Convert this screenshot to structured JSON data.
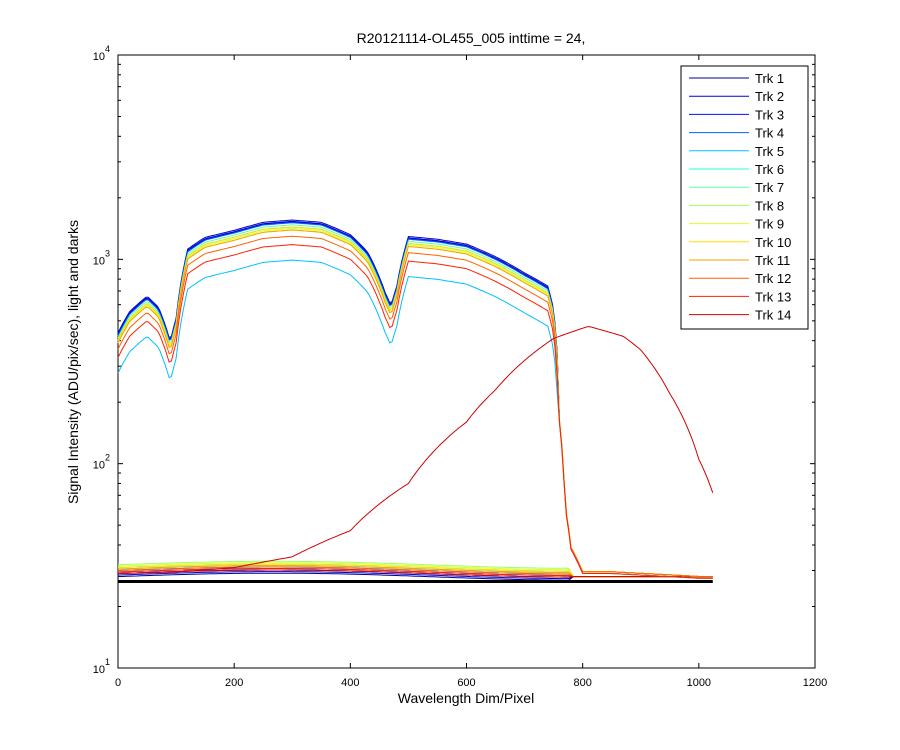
{
  "chart_data": {
    "type": "line",
    "title": "R20121114-OL455_005 inttime = 24,",
    "xlabel": "Wavelength Dim/Pixel",
    "ylabel": "Signal Intensity (ADU/pix/sec), light and darks",
    "xlim": [
      0,
      1200
    ],
    "ylim": [
      10,
      10000
    ],
    "y_scale": "log",
    "grid": false,
    "legend_position": "top-right",
    "x_ticks": [
      "0",
      "200",
      "400",
      "600",
      "800",
      "1000",
      "1200"
    ],
    "y_ticks": [
      {
        "base": "10",
        "exp": "1",
        "value": 10
      },
      {
        "base": "10",
        "exp": "2",
        "value": 100
      },
      {
        "base": "10",
        "exp": "3",
        "value": 1000
      },
      {
        "base": "10",
        "exp": "4",
        "value": 10000
      }
    ],
    "series": [
      {
        "name": "Trk 1",
        "color": "#00008f",
        "family": "light",
        "scale": 1.3,
        "dark": 28
      },
      {
        "name": "Trk 2",
        "color": "#0000cf",
        "family": "light",
        "scale": 1.32,
        "dark": 28.5
      },
      {
        "name": "Trk 3",
        "color": "#0010ff",
        "family": "light",
        "scale": 1.29,
        "dark": 29
      },
      {
        "name": "Trk 4",
        "color": "#0060ff",
        "family": "light",
        "scale": 1.28,
        "dark": 29.5
      },
      {
        "name": "Trk 5",
        "color": "#00c0ff",
        "family": "light",
        "scale": 0.84,
        "dark": 30
      },
      {
        "name": "Trk 6",
        "color": "#20ffdf",
        "family": "light",
        "scale": 1.22,
        "dark": 30.5
      },
      {
        "name": "Trk 7",
        "color": "#60ff9f",
        "family": "light",
        "scale": 1.25,
        "dark": 31
      },
      {
        "name": "Trk 8",
        "color": "#9fff60",
        "family": "light",
        "scale": 1.18,
        "dark": 32
      },
      {
        "name": "Trk 9",
        "color": "#dfff20",
        "family": "light",
        "scale": 1.2,
        "dark": 31.5
      },
      {
        "name": "Trk 10",
        "color": "#ffdf00",
        "family": "light",
        "scale": 1.22,
        "dark": 31
      },
      {
        "name": "Trk 11",
        "color": "#ff9f00",
        "family": "light",
        "scale": 1.18,
        "dark": 30.5
      },
      {
        "name": "Trk 12",
        "color": "#ff6000",
        "family": "light",
        "scale": 1.1,
        "dark": 30
      },
      {
        "name": "Trk 13",
        "color": "#ff2000",
        "family": "light",
        "scale": 1.0,
        "dark": 29.5
      },
      {
        "name": "Trk 14",
        "color": "#cf0000",
        "family": "gaussian",
        "peak_x": 810,
        "peak_y": 470,
        "dark": 29
      }
    ],
    "base_light_profile": {
      "x": [
        0,
        20,
        50,
        70,
        90,
        100,
        120,
        150,
        200,
        250,
        300,
        350,
        400,
        430,
        460,
        470,
        480,
        500,
        550,
        600,
        650,
        700,
        740,
        750,
        760,
        770,
        780,
        800,
        850,
        900,
        950,
        1000,
        1024
      ],
      "y": [
        330,
        420,
        500,
        440,
        300,
        390,
        850,
        970,
        1050,
        1150,
        1180,
        1150,
        1000,
        820,
        520,
        450,
        560,
        980,
        950,
        900,
        780,
        650,
        560,
        430,
        160,
        60,
        38,
        29,
        29,
        28.5,
        28,
        27.5,
        27.5
      ]
    },
    "gaussian_profile": {
      "x": [
        0,
        100,
        200,
        300,
        400,
        500,
        600,
        650,
        700,
        750,
        810,
        870,
        900,
        950,
        1000,
        1024
      ],
      "y": [
        29,
        29.5,
        31,
        35,
        47,
        80,
        160,
        230,
        320,
        410,
        470,
        420,
        360,
        220,
        105,
        72
      ]
    },
    "baseline": {
      "y": 26.5,
      "color": "#000000"
    }
  }
}
